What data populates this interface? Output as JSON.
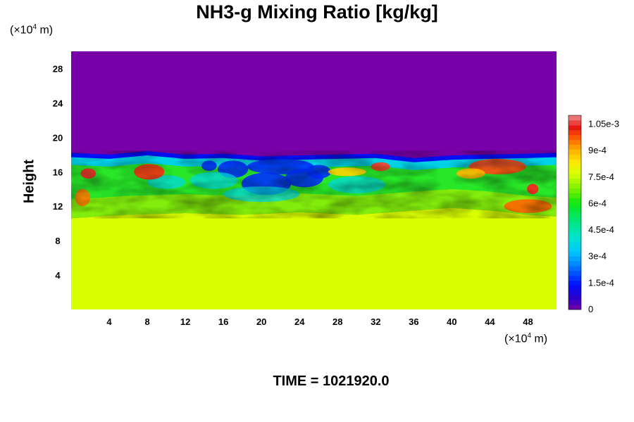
{
  "chart_data": {
    "type": "heatmap",
    "title": "NH3-g Mixing Ratio [kg/kg]",
    "ylabel": "Height",
    "xunit": "(×10",
    "xunit_exp": "4",
    "xunit_suffix": " m)",
    "yunit": "(×10",
    "yunit_exp": "4",
    "yunit_suffix": " m)",
    "xlim": [
      0,
      51
    ],
    "ylim": [
      0,
      30
    ],
    "xticks": [
      4,
      8,
      12,
      16,
      20,
      24,
      28,
      32,
      36,
      40,
      44,
      48
    ],
    "yticks": [
      4,
      8,
      12,
      16,
      20,
      24,
      28
    ],
    "xtick_labels": [
      "4",
      "8",
      "12",
      "16",
      "20",
      "24",
      "28",
      "32",
      "36",
      "40",
      "44",
      "48"
    ],
    "ytick_labels": [
      "4",
      "8",
      "12",
      "16",
      "20",
      "24",
      "28"
    ],
    "colorbar": {
      "min": 0,
      "max": 0.0011,
      "ticks": [
        0,
        0.00015,
        0.0003,
        0.00045,
        0.0006,
        0.00075,
        0.0009,
        0.00105
      ],
      "tick_labels": [
        "0",
        "1.5e-4",
        "3e-4",
        "4.5e-4",
        "6e-4",
        "7.5e-4",
        "9e-4",
        "1.05e-3"
      ]
    },
    "field_summary": {
      "lower_layer_value": 0.00078,
      "upper_layer_value": 0,
      "interface_height": [
        18,
        15
      ]
    },
    "grid": false,
    "legend": "colorbar-right"
  },
  "footer": {
    "time_text": "TIME = 1021920.0"
  }
}
